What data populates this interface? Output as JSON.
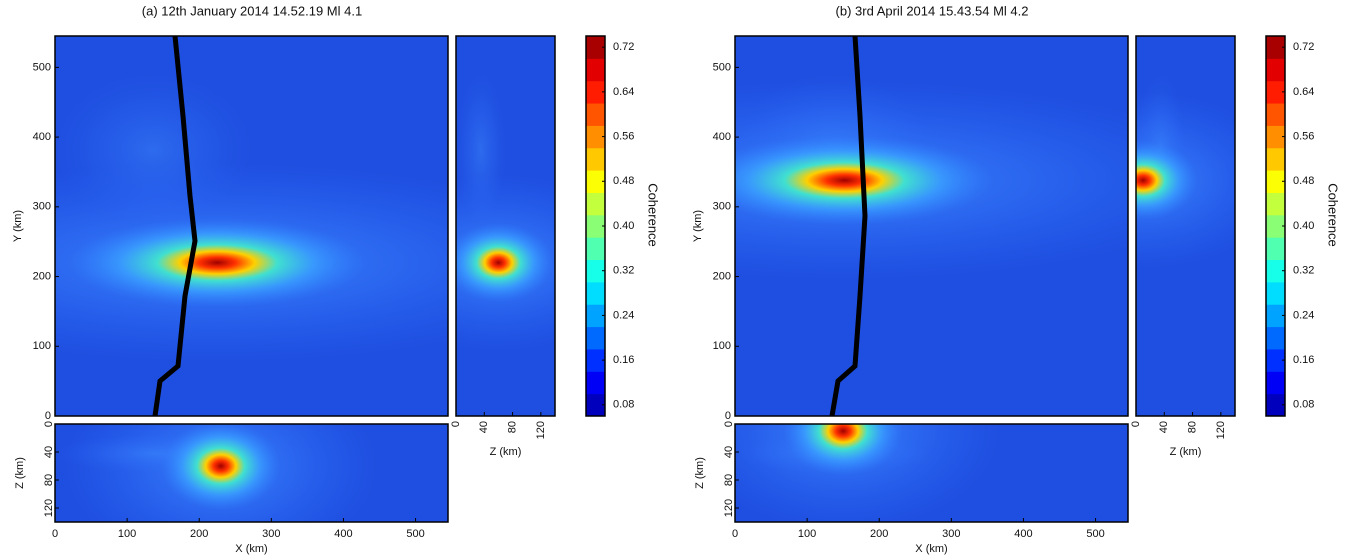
{
  "chart_data": [
    {
      "type": "contour",
      "title": "(a) 12th January  2014 14.52.19 Ml 4.1",
      "map_view": {
        "ylabel": "Y (km)",
        "xlim": [
          0,
          545
        ],
        "ylim": [
          0,
          545
        ],
        "yticks": [
          0,
          100,
          200,
          300,
          400,
          500
        ]
      },
      "side_view": {
        "xlabel": "Z (km)",
        "xlim": [
          0,
          140
        ],
        "xticks": [
          0,
          40,
          80,
          120
        ]
      },
      "bottom_view": {
        "xlabel": "X (km)",
        "ylabel": "Z (km)",
        "xlim": [
          0,
          545
        ],
        "ylim": [
          0,
          140
        ],
        "xticks": [
          0,
          100,
          200,
          300,
          400,
          500
        ],
        "yticks": [
          0,
          40,
          80,
          120
        ]
      },
      "colorbar": {
        "label": "Coherence",
        "lim": [
          0.06,
          0.74
        ],
        "ticks": [
          0.08,
          0.16,
          0.24,
          0.32,
          {
            "value": 0.4,
            "label": "0.40"
          },
          0.48,
          0.56,
          0.64,
          0.72
        ]
      }
    },
    {
      "type": "contour",
      "title": "(b) 3rd April 2014 15.43.54 Ml 4.2",
      "map_view": {
        "ylabel": "Y (km)",
        "xlim": [
          0,
          545
        ],
        "ylim": [
          0,
          545
        ],
        "yticks": [
          0,
          100,
          200,
          300,
          400,
          500
        ]
      },
      "side_view": {
        "xlabel": "Z (km)",
        "xlim": [
          0,
          140
        ],
        "xticks": [
          0,
          40,
          80,
          120
        ]
      },
      "bottom_view": {
        "xlabel": "X (km)",
        "ylabel": "Z (km)",
        "xlim": [
          0,
          545
        ],
        "ylim": [
          0,
          140
        ],
        "xticks": [
          0,
          100,
          200,
          300,
          400,
          500
        ],
        "yticks": [
          0,
          40,
          80,
          120
        ]
      },
      "colorbar": {
        "label": "Coherence",
        "lim": [
          0.06,
          0.74
        ],
        "ticks": [
          0.08,
          0.16,
          0.24,
          0.32,
          {
            "value": 0.4,
            "label": "0.40"
          },
          0.48,
          0.56,
          0.64,
          0.72
        ]
      }
    }
  ]
}
